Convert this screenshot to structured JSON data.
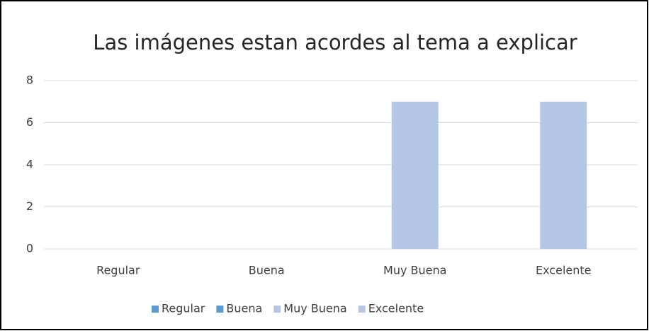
{
  "chart_data": {
    "type": "bar",
    "title": "Las imágenes estan acordes al tema a explicar",
    "categories": [
      "Regular",
      "Buena",
      "Muy Buena",
      "Excelente"
    ],
    "values": [
      0,
      0,
      7,
      7
    ],
    "colors": [
      "#5b9bd5",
      "#5b9bd5",
      "#b4c7e7",
      "#b4c7e7"
    ],
    "ylim": [
      0,
      8
    ],
    "yticks": [
      0,
      2,
      4,
      6,
      8
    ],
    "grid": true,
    "legend": "bottom"
  }
}
